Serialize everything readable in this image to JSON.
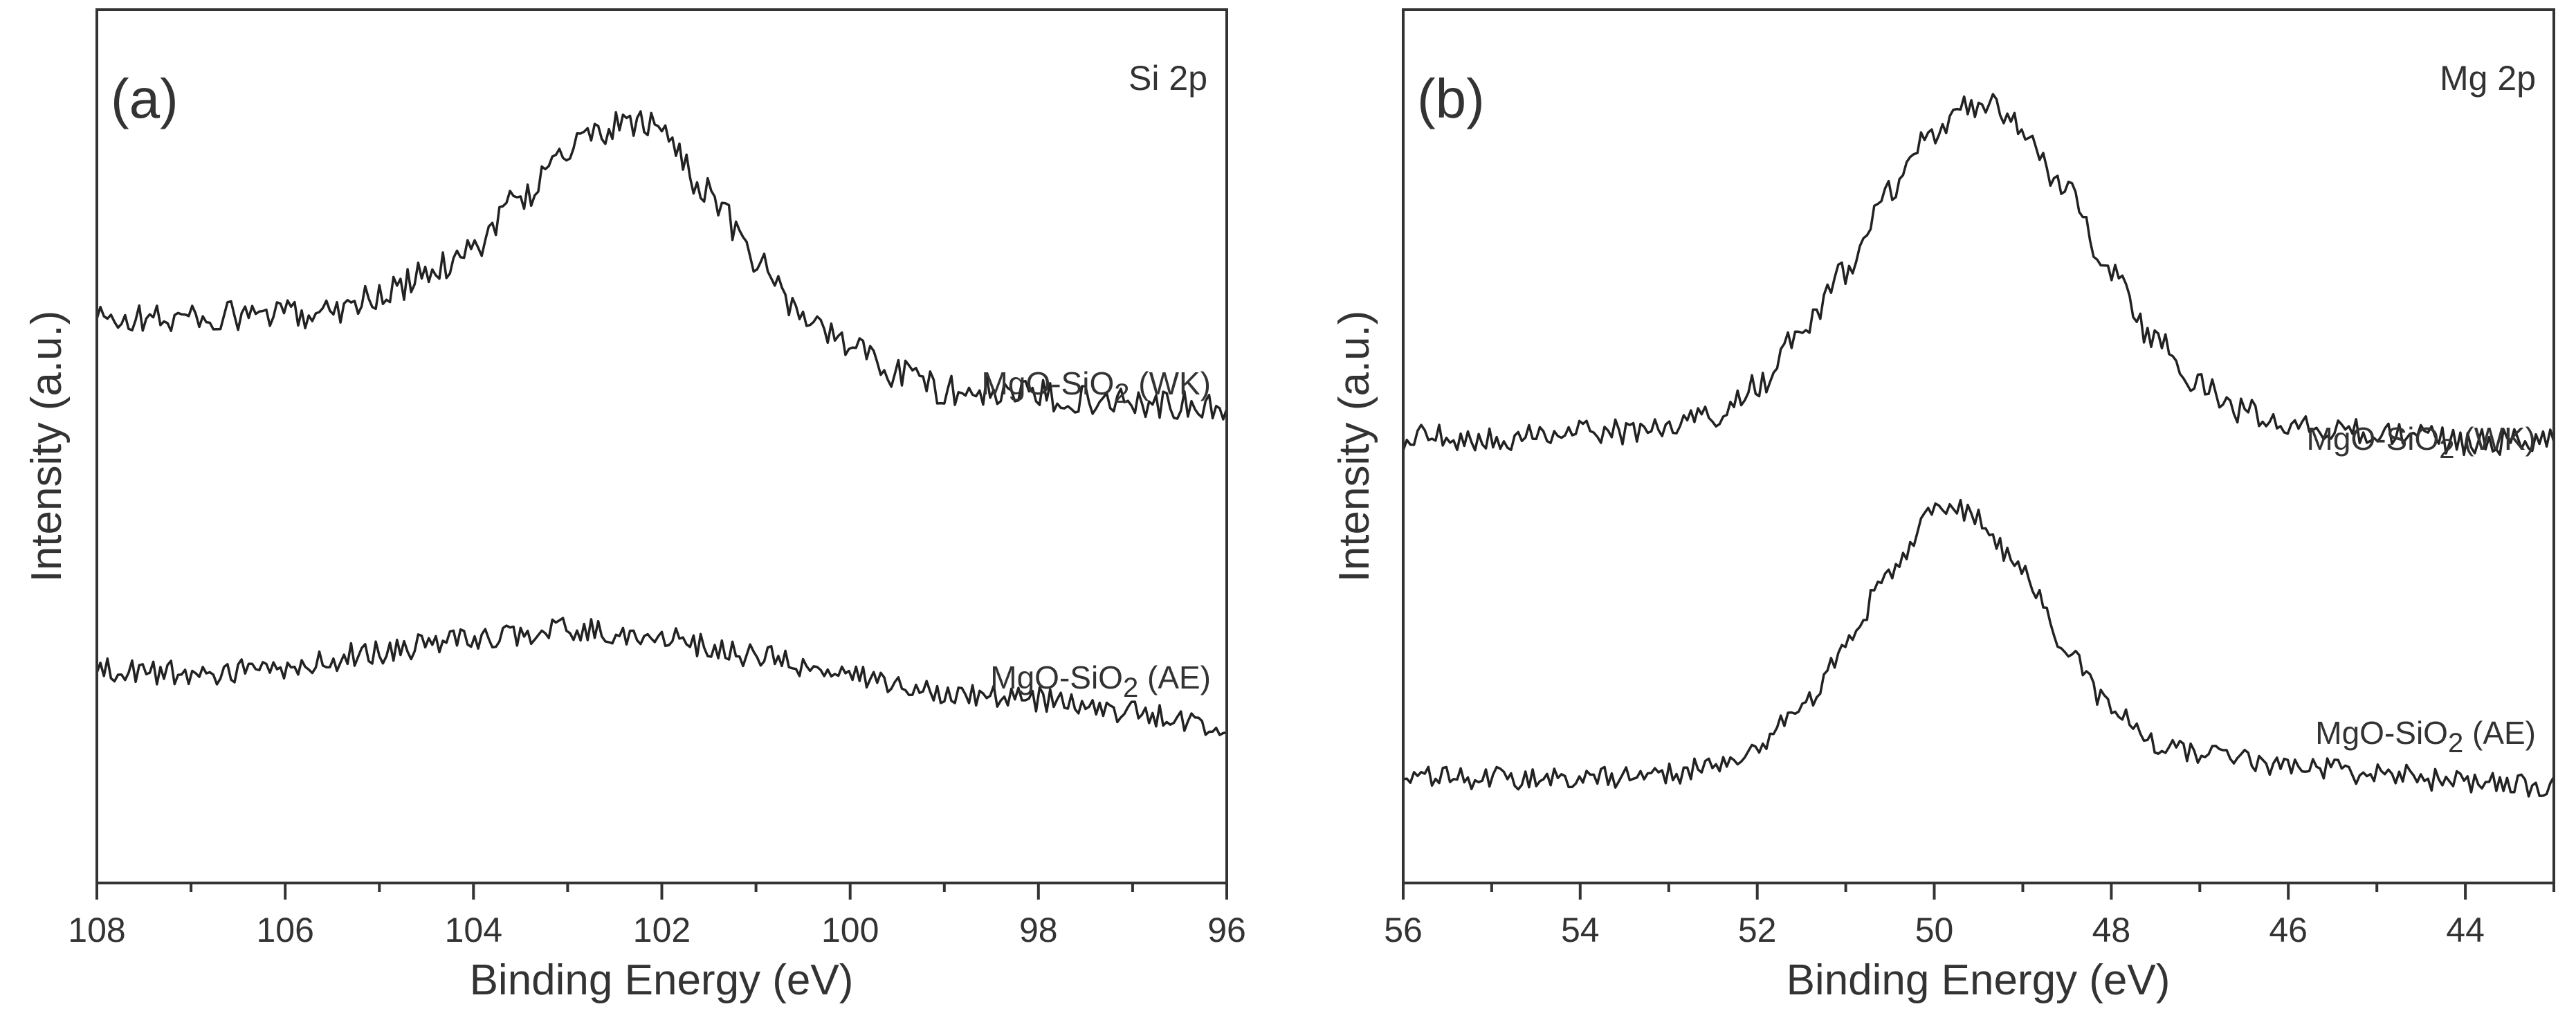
{
  "figure": {
    "ink_color": "#222222",
    "background": "#ffffff"
  },
  "chart_data": [
    {
      "type": "line",
      "panel_label": "(a)",
      "corner_label": "Si 2p",
      "xlabel": "Binding Energy (eV)",
      "ylabel": "Intensity (a.u.)",
      "xlim": [
        108,
        96
      ],
      "x_reversed": true,
      "xticks": [
        108,
        106,
        104,
        102,
        100,
        98,
        96
      ],
      "ylim": [
        0,
        100
      ],
      "y_tick_labels": false,
      "series": [
        {
          "name": "MgO-SiO2 (WK)",
          "label_main": "MgO-SiO",
          "label_sub": "2",
          "label_tail": " (WK)",
          "noise": 1.8,
          "points": [
            [
              108,
              64.5
            ],
            [
              107,
              64.7
            ],
            [
              106,
              65.0
            ],
            [
              105.5,
              65.8
            ],
            [
              105,
              67.2
            ],
            [
              104.5,
              69.5
            ],
            [
              104,
              73.0
            ],
            [
              103.5,
              78.5
            ],
            [
              103,
              84.0
            ],
            [
              102.5,
              86.5
            ],
            [
              102.2,
              87.0
            ],
            [
              102,
              86.0
            ],
            [
              101.5,
              79.0
            ],
            [
              101,
              71.0
            ],
            [
              100.5,
              65.0
            ],
            [
              100,
              61.5
            ],
            [
              99.5,
              58.5
            ],
            [
              99,
              56.5
            ],
            [
              98,
              55.8
            ],
            [
              97,
              55.2
            ],
            [
              96,
              54.0
            ]
          ]
        },
        {
          "name": "MgO-SiO2 (AE)",
          "label_main": "MgO-SiO",
          "label_sub": "2",
          "label_tail": " (AE)",
          "noise": 1.4,
          "points": [
            [
              108,
              24.5
            ],
            [
              107,
              24.0
            ],
            [
              106,
              24.5
            ],
            [
              105,
              26.5
            ],
            [
              104,
              28.0
            ],
            [
              103,
              29.0
            ],
            [
              102,
              28.0
            ],
            [
              101,
              26.0
            ],
            [
              100,
              23.5
            ],
            [
              99,
              22.0
            ],
            [
              98,
              21.0
            ],
            [
              97,
              19.5
            ],
            [
              96,
              17.5
            ]
          ]
        }
      ]
    },
    {
      "type": "line",
      "panel_label": "(b)",
      "corner_label": "Mg 2p",
      "xlabel": "Binding Energy (eV)",
      "ylabel": "Intensity (a.u.)",
      "xlim": [
        56,
        43
      ],
      "x_reversed": true,
      "xticks": [
        56,
        54,
        52,
        50,
        48,
        46,
        44
      ],
      "ylim": [
        0,
        100
      ],
      "y_tick_labels": false,
      "series": [
        {
          "name": "MgO-SiO2 (WK)",
          "label_main": "MgO-SiO",
          "label_sub": "2",
          "label_tail": " (WK)",
          "noise": 1.5,
          "points": [
            [
              56,
              51.0
            ],
            [
              55,
              51.0
            ],
            [
              54,
              51.5
            ],
            [
              53,
              52.0
            ],
            [
              52.5,
              53.5
            ],
            [
              52,
              57.0
            ],
            [
              51.5,
              63.0
            ],
            [
              51,
              70.0
            ],
            [
              50.5,
              79.0
            ],
            [
              50,
              86.0
            ],
            [
              49.6,
              89.0
            ],
            [
              49.3,
              89.0
            ],
            [
              49,
              86.0
            ],
            [
              48.5,
              79.0
            ],
            [
              48,
              70.0
            ],
            [
              47.5,
              62.0
            ],
            [
              47,
              57.0
            ],
            [
              46.5,
              54.0
            ],
            [
              46,
              52.5
            ],
            [
              45,
              51.5
            ],
            [
              44,
              50.5
            ],
            [
              43,
              50.5
            ]
          ]
        },
        {
          "name": "MgO-SiO2 (AE)",
          "label_main": "MgO-SiO",
          "label_sub": "2",
          "label_tail": " (AE)",
          "noise": 1.3,
          "points": [
            [
              56,
              12.0
            ],
            [
              55,
              12.0
            ],
            [
              54,
              12.0
            ],
            [
              53,
              12.5
            ],
            [
              52.5,
              13.5
            ],
            [
              52,
              15.5
            ],
            [
              51.5,
              20.0
            ],
            [
              51,
              27.0
            ],
            [
              50.5,
              36.0
            ],
            [
              50,
              42.5
            ],
            [
              49.8,
              43.5
            ],
            [
              49.5,
              41.5
            ],
            [
              49,
              35.5
            ],
            [
              48.5,
              27.0
            ],
            [
              48,
              20.0
            ],
            [
              47.5,
              16.0
            ],
            [
              47,
              14.5
            ],
            [
              46,
              13.5
            ],
            [
              45,
              12.5
            ],
            [
              44,
              11.5
            ],
            [
              43,
              11.0
            ]
          ]
        }
      ]
    }
  ]
}
